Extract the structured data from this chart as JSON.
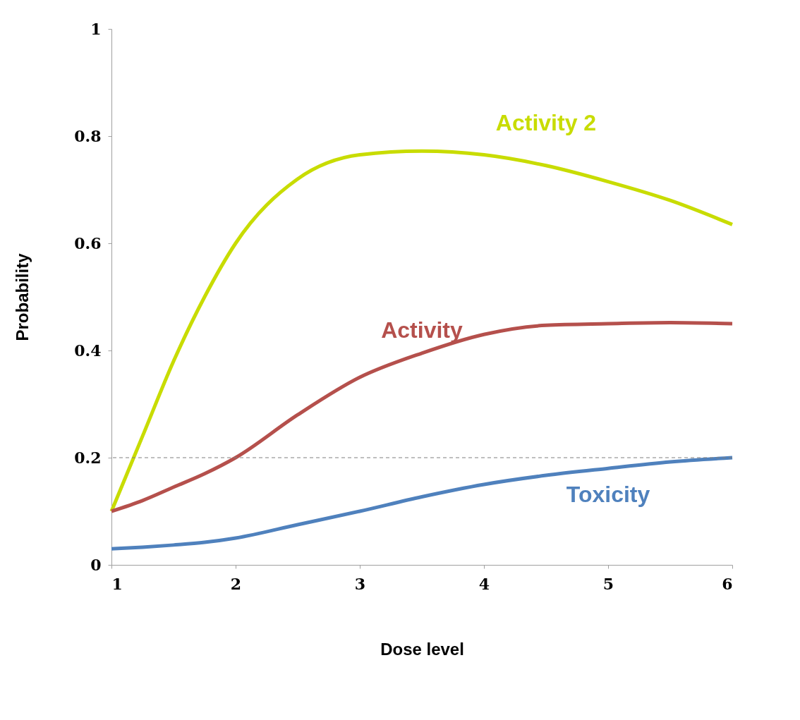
{
  "chart_data": {
    "type": "line",
    "xlabel": "Dose level",
    "ylabel": "Probability",
    "x": [
      1,
      1.25,
      1.5,
      1.75,
      2,
      2.5,
      3,
      3.5,
      4,
      4.5,
      5,
      5.5,
      6
    ],
    "series": [
      {
        "name": "Activity 2",
        "color": "#c8dc00",
        "values": [
          0.1,
          0.24,
          0.38,
          0.5,
          0.6,
          0.72,
          0.765,
          0.772,
          0.765,
          0.745,
          0.715,
          0.68,
          0.635
        ]
      },
      {
        "name": "Activity",
        "color": "#b5504c",
        "values": [
          0.1,
          0.12,
          0.145,
          0.17,
          0.2,
          0.28,
          0.35,
          0.395,
          0.43,
          0.447,
          0.45,
          0.452,
          0.45
        ]
      },
      {
        "name": "Toxicity",
        "color": "#4f81bd",
        "values": [
          0.03,
          0.033,
          0.037,
          0.042,
          0.05,
          0.075,
          0.1,
          0.127,
          0.15,
          0.167,
          0.18,
          0.192,
          0.2
        ]
      }
    ],
    "xlim": [
      1,
      6
    ],
    "xticks": [
      1,
      2,
      3,
      4,
      5,
      6
    ],
    "ylim": [
      0,
      1
    ],
    "yticks": [
      0,
      0.2,
      0.4,
      0.6,
      0.8,
      1
    ],
    "ref_lines": [
      {
        "axis": "y",
        "value": 0.2,
        "color": "#808080",
        "line_style": "dashed"
      }
    ],
    "grid": false,
    "marker": "none",
    "line_style": "solid"
  }
}
